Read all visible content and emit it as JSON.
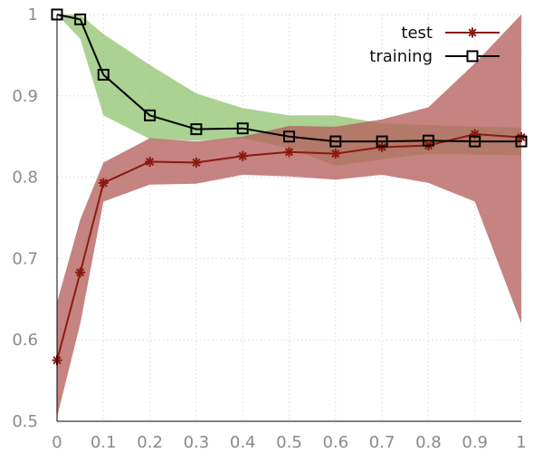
{
  "chart_data": {
    "type": "line",
    "x": [
      0,
      0.05,
      0.1,
      0.2,
      0.3,
      0.4,
      0.5,
      0.6,
      0.7,
      0.8,
      0.9,
      1.0
    ],
    "xlim": [
      0,
      1
    ],
    "ylim": [
      0.5,
      1.0
    ],
    "grid": true,
    "legend_position": "top-right",
    "x_ticks": [
      0,
      0.1,
      0.2,
      0.3,
      0.4,
      0.5,
      0.6,
      0.7,
      0.8,
      0.9,
      1
    ],
    "x_tick_labels": [
      "0",
      "0.1",
      "0.2",
      "0.3",
      "0.4",
      "0.5",
      "0.6",
      "0.7",
      "0.8",
      "0.9",
      "1"
    ],
    "y_ticks": [
      0.5,
      0.6,
      0.7,
      0.8,
      0.9,
      1.0
    ],
    "y_tick_labels": [
      "0.5",
      "0.6",
      "0.7",
      "0.8",
      "0.9",
      "1"
    ],
    "series": [
      {
        "name": "test",
        "marker": "asterisk",
        "color": "#8b1a0e",
        "band_color": "#b5605e",
        "values": [
          0.575,
          0.683,
          0.793,
          0.819,
          0.818,
          0.826,
          0.831,
          0.829,
          0.837,
          0.839,
          0.853,
          0.849
        ],
        "band_lower": [
          0.505,
          0.62,
          0.77,
          0.791,
          0.792,
          0.803,
          0.801,
          0.797,
          0.803,
          0.793,
          0.77,
          0.62
        ],
        "band_upper": [
          0.646,
          0.748,
          0.818,
          0.848,
          0.844,
          0.85,
          0.863,
          0.862,
          0.871,
          0.886,
          0.94,
          1.0
        ]
      },
      {
        "name": "training",
        "marker": "square",
        "color": "#000000",
        "band_color": "#8fc16f",
        "values": [
          1.0,
          0.994,
          0.926,
          0.876,
          0.859,
          0.86,
          0.85,
          0.844,
          0.844,
          0.845,
          0.844,
          0.844
        ],
        "band_lower": [
          1.0,
          0.97,
          0.876,
          0.847,
          0.845,
          0.848,
          0.836,
          0.814,
          0.822,
          0.829,
          0.828,
          0.827
        ],
        "band_upper": [
          1.0,
          1.0,
          0.976,
          0.938,
          0.903,
          0.885,
          0.876,
          0.876,
          0.866,
          0.864,
          0.862,
          0.861
        ]
      }
    ]
  }
}
